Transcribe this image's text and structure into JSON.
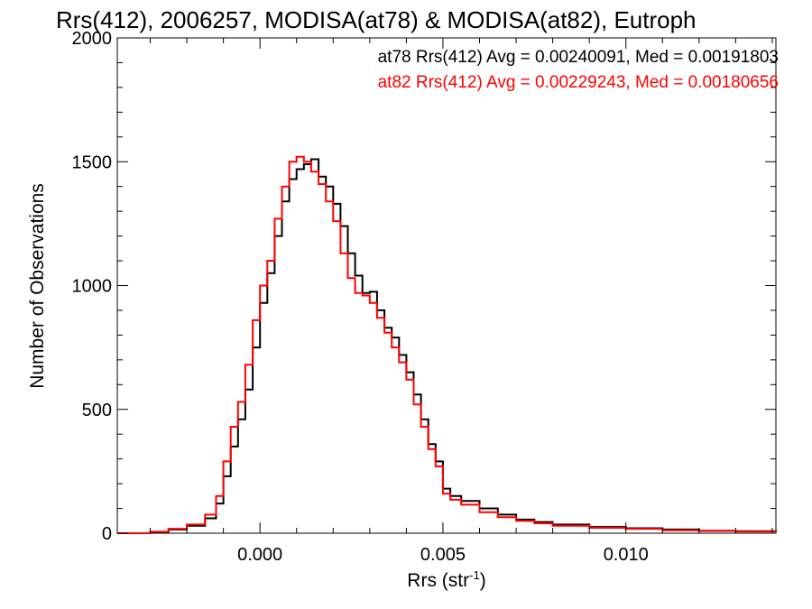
{
  "chart_data": {
    "type": "line",
    "style": "histogram-step",
    "title": "Rrs(412), 2006257, MODISA(at78) & MODISA(at82), Eutroph",
    "xlabel": "Rrs (str",
    "xlabel_superscript": "-1",
    "xlabel_close": ")",
    "ylabel": "Number of Observations",
    "xlim": [
      -0.0039,
      0.0141
    ],
    "ylim": [
      0,
      2000
    ],
    "grid": false,
    "x_ticks": [
      {
        "value": 0.0,
        "label": "0.000"
      },
      {
        "value": 0.005,
        "label": "0.005"
      },
      {
        "value": 0.01,
        "label": "0.010"
      }
    ],
    "y_ticks": [
      {
        "value": 0,
        "label": "0"
      },
      {
        "value": 500,
        "label": "500"
      },
      {
        "value": 1000,
        "label": "1000"
      },
      {
        "value": 1500,
        "label": "1500"
      },
      {
        "value": 2000,
        "label": "2000"
      }
    ],
    "annotations": [
      {
        "text": "at78 Rrs(412) Avg = 0.00240091, Med = 0.00191803",
        "color": "#000000"
      },
      {
        "text": "at82 Rrs(412) Avg = 0.00229243, Med = 0.00180656",
        "color": "#ff0000"
      }
    ],
    "series": [
      {
        "name": "at78",
        "color": "#000000",
        "x": [
          -0.0039,
          -0.003,
          -0.0025,
          -0.002,
          -0.0015,
          -0.0012,
          -0.001,
          -0.0008,
          -0.0006,
          -0.0004,
          -0.0002,
          0.0,
          0.0002,
          0.0004,
          0.0006,
          0.0008,
          0.001,
          0.0012,
          0.0014,
          0.0016,
          0.0018,
          0.002,
          0.0022,
          0.0024,
          0.0026,
          0.0028,
          0.003,
          0.0032,
          0.0034,
          0.0036,
          0.0038,
          0.004,
          0.0042,
          0.0044,
          0.0046,
          0.0048,
          0.005,
          0.0052,
          0.0055,
          0.006,
          0.0065,
          0.007,
          0.0075,
          0.008,
          0.009,
          0.01,
          0.011,
          0.012,
          0.013,
          0.0141
        ],
        "y": [
          0,
          5,
          15,
          30,
          60,
          120,
          230,
          350,
          460,
          580,
          750,
          930,
          1050,
          1200,
          1340,
          1430,
          1470,
          1490,
          1510,
          1440,
          1400,
          1330,
          1240,
          1130,
          1040,
          970,
          975,
          900,
          830,
          790,
          720,
          650,
          560,
          460,
          360,
          290,
          180,
          150,
          130,
          100,
          75,
          55,
          45,
          35,
          25,
          20,
          15,
          10,
          8,
          5
        ]
      },
      {
        "name": "at82",
        "color": "#ff0000",
        "x": [
          -0.0039,
          -0.003,
          -0.0025,
          -0.002,
          -0.0015,
          -0.0012,
          -0.001,
          -0.0008,
          -0.0006,
          -0.0004,
          -0.0002,
          0.0,
          0.0002,
          0.0004,
          0.0006,
          0.0008,
          0.001,
          0.0012,
          0.0014,
          0.0016,
          0.0018,
          0.002,
          0.0022,
          0.0024,
          0.0026,
          0.0028,
          0.003,
          0.0032,
          0.0034,
          0.0036,
          0.0038,
          0.004,
          0.0042,
          0.0044,
          0.0046,
          0.0048,
          0.005,
          0.0052,
          0.0055,
          0.006,
          0.0065,
          0.007,
          0.0075,
          0.008,
          0.009,
          0.01,
          0.011,
          0.012,
          0.013,
          0.0141
        ],
        "y": [
          0,
          6,
          18,
          35,
          75,
          150,
          290,
          430,
          530,
          680,
          860,
          1000,
          1100,
          1270,
          1400,
          1500,
          1520,
          1500,
          1460,
          1410,
          1340,
          1260,
          1130,
          1030,
          970,
          960,
          930,
          870,
          810,
          750,
          690,
          620,
          520,
          430,
          340,
          270,
          160,
          135,
          115,
          85,
          65,
          50,
          40,
          30,
          22,
          18,
          12,
          9,
          7,
          4
        ]
      }
    ]
  }
}
